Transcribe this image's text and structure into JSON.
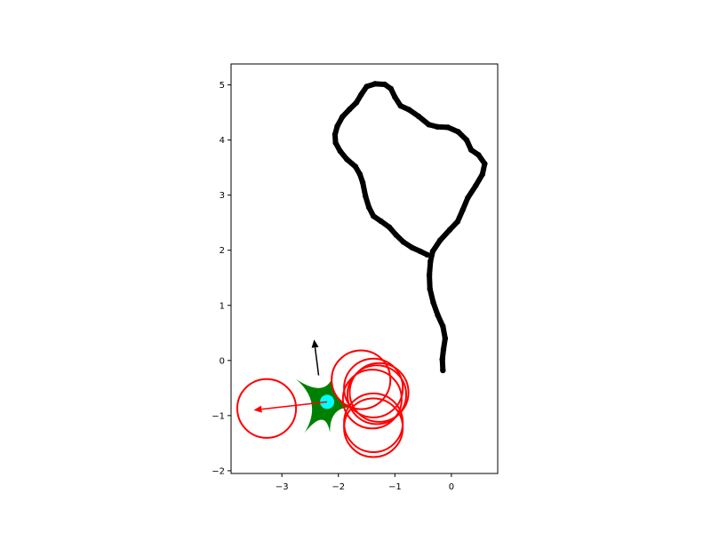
{
  "chart_data": {
    "type": "scatter",
    "title": "",
    "xlabel": "",
    "ylabel": "",
    "xlim": [
      -3.9,
      0.82
    ],
    "ylim": [
      -2.05,
      5.38
    ],
    "aspect": "equal",
    "grid": false,
    "legend": false,
    "x_ticks": [
      {
        "value": -3,
        "label": "−3"
      },
      {
        "value": -2,
        "label": "−2"
      },
      {
        "value": -1,
        "label": "−1"
      },
      {
        "value": 0,
        "label": "0"
      }
    ],
    "y_ticks": [
      {
        "value": -2,
        "label": "−2"
      },
      {
        "value": -1,
        "label": "−1"
      },
      {
        "value": 0,
        "label": "0"
      },
      {
        "value": 1,
        "label": "1"
      },
      {
        "value": 2,
        "label": "2"
      },
      {
        "value": 3,
        "label": "3"
      },
      {
        "value": 4,
        "label": "4"
      },
      {
        "value": 5,
        "label": "5"
      }
    ],
    "trajectory": {
      "color": "#000000",
      "points": [
        [
          -0.43,
          1.92
        ],
        [
          -0.55,
          1.98
        ],
        [
          -0.7,
          2.05
        ],
        [
          -0.85,
          2.15
        ],
        [
          -0.98,
          2.28
        ],
        [
          -1.1,
          2.42
        ],
        [
          -1.25,
          2.53
        ],
        [
          -1.38,
          2.62
        ],
        [
          -1.46,
          2.78
        ],
        [
          -1.52,
          2.98
        ],
        [
          -1.57,
          3.23
        ],
        [
          -1.62,
          3.38
        ],
        [
          -1.7,
          3.52
        ],
        [
          -1.85,
          3.65
        ],
        [
          -1.97,
          3.8
        ],
        [
          -2.05,
          3.95
        ],
        [
          -2.06,
          4.1
        ],
        [
          -2.02,
          4.25
        ],
        [
          -1.93,
          4.42
        ],
        [
          -1.8,
          4.56
        ],
        [
          -1.68,
          4.68
        ],
        [
          -1.6,
          4.82
        ],
        [
          -1.5,
          4.97
        ],
        [
          -1.35,
          5.02
        ],
        [
          -1.18,
          5.01
        ],
        [
          -1.07,
          4.93
        ],
        [
          -1.0,
          4.78
        ],
        [
          -0.9,
          4.62
        ],
        [
          -0.75,
          4.55
        ],
        [
          -0.58,
          4.43
        ],
        [
          -0.4,
          4.28
        ],
        [
          -0.25,
          4.24
        ],
        [
          -0.06,
          4.23
        ],
        [
          0.12,
          4.15
        ],
        [
          0.27,
          4.0
        ],
        [
          0.35,
          3.82
        ],
        [
          0.48,
          3.73
        ],
        [
          0.59,
          3.57
        ],
        [
          0.55,
          3.38
        ],
        [
          0.43,
          3.17
        ],
        [
          0.29,
          2.95
        ],
        [
          0.2,
          2.73
        ],
        [
          0.11,
          2.52
        ],
        [
          -0.03,
          2.37
        ],
        [
          -0.2,
          2.18
        ],
        [
          -0.33,
          1.98
        ],
        [
          -0.37,
          1.8
        ],
        [
          -0.39,
          1.55
        ],
        [
          -0.38,
          1.3
        ],
        [
          -0.32,
          1.05
        ],
        [
          -0.24,
          0.82
        ],
        [
          -0.15,
          0.62
        ],
        [
          -0.11,
          0.4
        ],
        [
          -0.14,
          0.2
        ],
        [
          -0.16,
          0.02
        ],
        [
          -0.15,
          -0.18
        ]
      ]
    },
    "circles": {
      "color": "#ff0000",
      "radius": 0.52,
      "centers": [
        [
          -3.27,
          -0.87
        ],
        [
          -1.6,
          -0.35
        ],
        [
          -1.38,
          -0.5
        ],
        [
          -1.32,
          -0.62
        ],
        [
          -1.4,
          -0.7
        ],
        [
          -1.28,
          -0.58
        ],
        [
          -1.38,
          -1.13
        ],
        [
          -1.38,
          -1.22
        ]
      ]
    },
    "agent": {
      "position": [
        -2.2,
        -0.75
      ],
      "marker_color": "#00ffff",
      "shape_color": "#008000",
      "heading_arrow": {
        "color": "#000000",
        "from": [
          -2.35,
          -0.27
        ],
        "to": [
          -2.43,
          0.38
        ]
      },
      "target_arrow": {
        "color": "#ff0000",
        "from": [
          -2.2,
          -0.75
        ],
        "to": [
          -3.5,
          -0.9
        ]
      }
    }
  }
}
